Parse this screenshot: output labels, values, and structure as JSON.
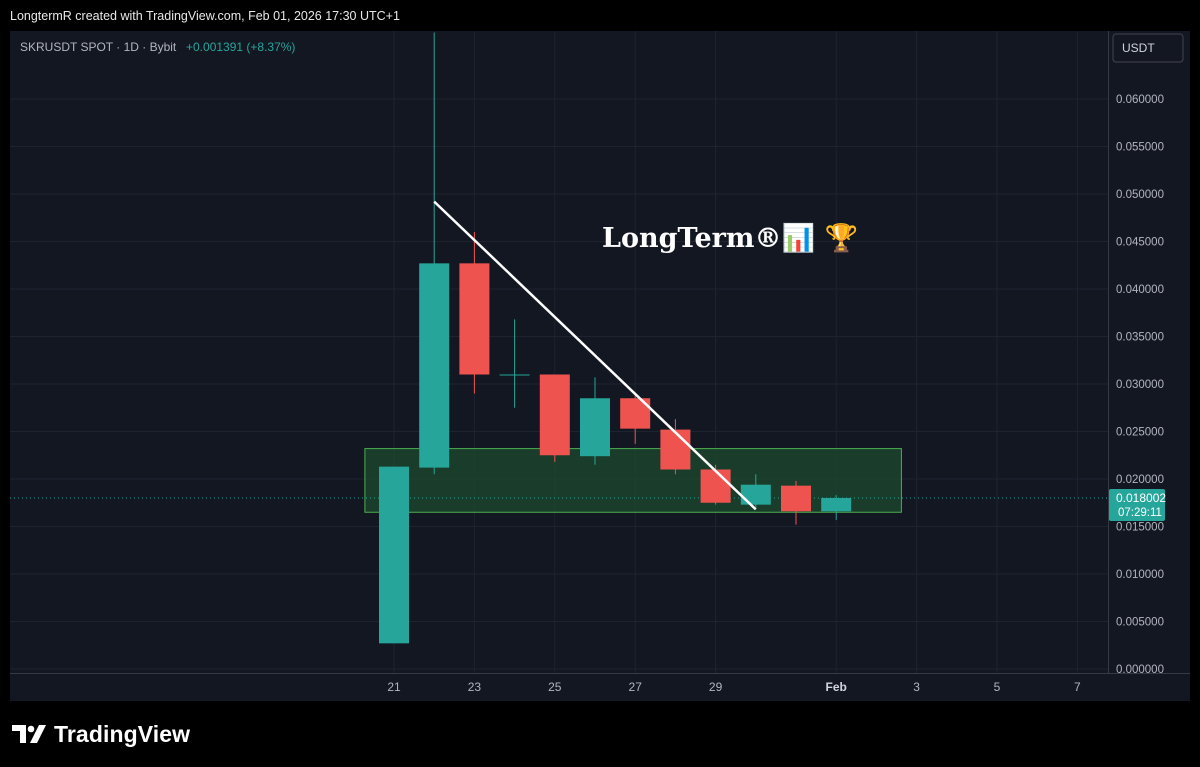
{
  "attribution": "LongtermR created with TradingView.com, Feb 01, 2026 17:30 UTC+1",
  "branding": {
    "name": "TradingView",
    "icon": "tradingview-logo-icon"
  },
  "colors": {
    "up": "#26a69a",
    "down": "#ef5350",
    "zone_fill": "#1e4a2f",
    "zone_stroke": "#4caf50",
    "trendline": "#ffffff",
    "background": "#131722"
  },
  "chart_data": {
    "type": "candlestick",
    "symbol_legend": {
      "symbol": "SKRUSDT SPOT · 1D · Bybit",
      "change": "+0.001391 (+8.37%)"
    },
    "currency_label": "USDT",
    "watermark": "LongTerm®📊 🏆",
    "price_label": {
      "value": "0.018002",
      "countdown": "07:29:11"
    },
    "y_ticks": [
      "0.060000",
      "0.055000",
      "0.050000",
      "0.045000",
      "0.040000",
      "0.035000",
      "0.030000",
      "0.025000",
      "0.020000",
      "0.015000",
      "0.010000",
      "0.005000",
      "0.000000"
    ],
    "y_tick_values": [
      0.06,
      0.055,
      0.05,
      0.045,
      0.04,
      0.035,
      0.03,
      0.025,
      0.02,
      0.015,
      0.01,
      0.005,
      0.0
    ],
    "x_ticks": [
      {
        "label": "21",
        "day": 21
      },
      {
        "label": "23",
        "day": 23
      },
      {
        "label": "25",
        "day": 25
      },
      {
        "label": "27",
        "day": 27
      },
      {
        "label": "29",
        "day": 29
      },
      {
        "label": "Feb",
        "day": 32
      },
      {
        "label": "3",
        "day": 34
      },
      {
        "label": "5",
        "day": 36
      },
      {
        "label": "7",
        "day": 38
      }
    ],
    "ylim": [
      0,
      0.0665
    ],
    "candles": [
      {
        "day": 21,
        "open": 0.0027,
        "high": 0.0213,
        "low": 0.0027,
        "close": 0.0213
      },
      {
        "day": 22,
        "open": 0.0212,
        "high": 0.067,
        "low": 0.0205,
        "close": 0.0427
      },
      {
        "day": 23,
        "open": 0.0427,
        "high": 0.046,
        "low": 0.029,
        "close": 0.031
      },
      {
        "day": 24,
        "open": 0.031,
        "high": 0.0368,
        "low": 0.0275,
        "close": 0.031
      },
      {
        "day": 25,
        "open": 0.031,
        "high": 0.031,
        "low": 0.0218,
        "close": 0.0225
      },
      {
        "day": 26,
        "open": 0.0224,
        "high": 0.0307,
        "low": 0.0215,
        "close": 0.0285
      },
      {
        "day": 27,
        "open": 0.0285,
        "high": 0.029,
        "low": 0.0237,
        "close": 0.0253
      },
      {
        "day": 28,
        "open": 0.0252,
        "high": 0.0263,
        "low": 0.0205,
        "close": 0.021
      },
      {
        "day": 29,
        "open": 0.021,
        "high": 0.0215,
        "low": 0.0173,
        "close": 0.0175
      },
      {
        "day": 30,
        "open": 0.0173,
        "high": 0.0205,
        "low": 0.017,
        "close": 0.0194
      },
      {
        "day": 31,
        "open": 0.0193,
        "high": 0.0198,
        "low": 0.0152,
        "close": 0.0166
      },
      {
        "day": 32,
        "open": 0.0166,
        "high": 0.0183,
        "low": 0.0157,
        "close": 0.018
      }
    ],
    "drawings": {
      "zone": {
        "day_start": 20.5,
        "day_end": 33.0,
        "price_top": 0.0232,
        "price_bottom": 0.0165
      },
      "trendline": {
        "day_start": 22.0,
        "price_start": 0.0492,
        "day_end": 30.0,
        "price_end": 0.0168
      }
    }
  }
}
